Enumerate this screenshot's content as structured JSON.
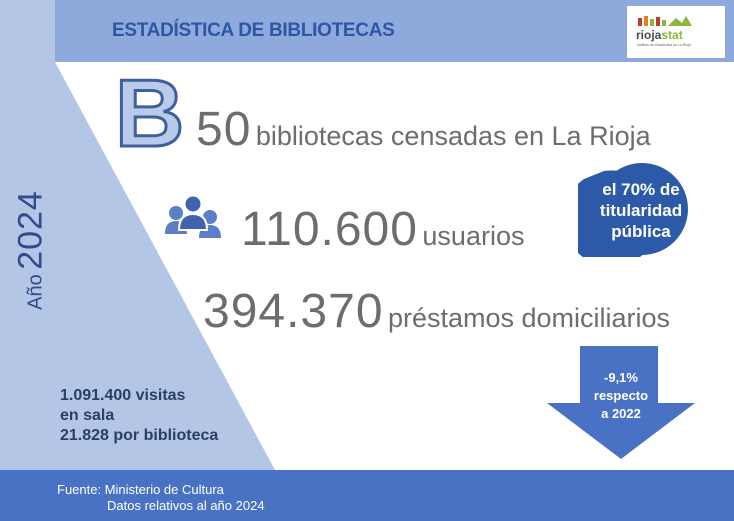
{
  "header": {
    "title": "ESTADÍSTICA DE BIBLIOTECAS",
    "logo_word_1": "rioja",
    "logo_word_2": "stat",
    "logo_subtitle": "Instituto de Estadística de La Rioja",
    "band_color": "#8ea9dc"
  },
  "year": {
    "label": "Año",
    "value": "2024"
  },
  "letter": "B",
  "stats": {
    "libraries": {
      "value": "50",
      "label": "bibliotecas censadas en La Rioja"
    },
    "users": {
      "value": "110.600",
      "label": "usuarios",
      "icon": "users-icon"
    },
    "loans": {
      "value": "394.370",
      "label": "préstamos domiciliarios"
    }
  },
  "badge": {
    "line1": "el 70% de",
    "line2": "titularidad",
    "line3": "pública",
    "color": "#2d5aa8"
  },
  "change": {
    "line1": "-9,1%",
    "line2": "respecto",
    "line3": "a 2022",
    "color": "#4a72c4"
  },
  "visits": {
    "line1": "1.091.400 visitas",
    "line2": "en sala",
    "line3": "21.828 por biblioteca"
  },
  "footer": {
    "source": "Fuente: Ministerio de Cultura",
    "note": "Datos relativos al año 2024",
    "color": "#4a72c4"
  }
}
